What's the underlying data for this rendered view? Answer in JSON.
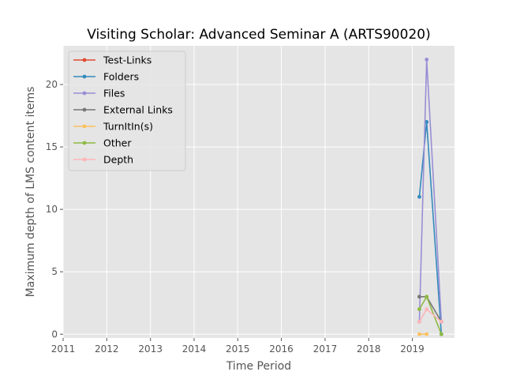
{
  "chart_data": {
    "type": "line",
    "title": "Visiting Scholar: Advanced Seminar A (ARTS90020)",
    "xlabel": "Time Period",
    "ylabel": "Maximum depth of LMS content items",
    "x_ticks": [
      "2011",
      "2012",
      "2013",
      "2014",
      "2015",
      "2016",
      "2017",
      "2018",
      "2019"
    ],
    "y_ticks": [
      0,
      5,
      10,
      15,
      20
    ],
    "xlim": [
      "2011-01-01",
      "2019-12-20"
    ],
    "ylim": [
      -0.3,
      23.1
    ],
    "grid": true,
    "legend_position": "upper-left",
    "series": [
      {
        "name": "Test-Links",
        "color": "#E24A33",
        "points": []
      },
      {
        "name": "Folders",
        "color": "#348ABD",
        "points": [
          {
            "x": "2019-03-01",
            "y": 11
          },
          {
            "x": "2019-05-01",
            "y": 17
          },
          {
            "x": "2019-09-01",
            "y": 0
          }
        ]
      },
      {
        "name": "Files",
        "color": "#988ED5",
        "points": [
          {
            "x": "2019-03-01",
            "y": 1
          },
          {
            "x": "2019-05-01",
            "y": 22
          },
          {
            "x": "2019-09-01",
            "y": 1
          }
        ]
      },
      {
        "name": "External Links",
        "color": "#777777",
        "points": [
          {
            "x": "2019-03-01",
            "y": 3
          },
          {
            "x": "2019-05-01",
            "y": 3
          },
          {
            "x": "2019-09-01",
            "y": 1
          }
        ]
      },
      {
        "name": "TurnItIn(s)",
        "color": "#FBC15E",
        "points": [
          {
            "x": "2019-03-01",
            "y": 0
          },
          {
            "x": "2019-05-01",
            "y": 0
          }
        ]
      },
      {
        "name": "Other",
        "color": "#8EBA42",
        "points": [
          {
            "x": "2019-03-01",
            "y": 2
          },
          {
            "x": "2019-05-01",
            "y": 3
          },
          {
            "x": "2019-09-01",
            "y": 0
          }
        ]
      },
      {
        "name": "Depth",
        "color": "#FFB5B8",
        "points": [
          {
            "x": "2019-03-01",
            "y": 1
          },
          {
            "x": "2019-05-01",
            "y": 2
          },
          {
            "x": "2019-09-01",
            "y": 1
          }
        ]
      }
    ]
  }
}
